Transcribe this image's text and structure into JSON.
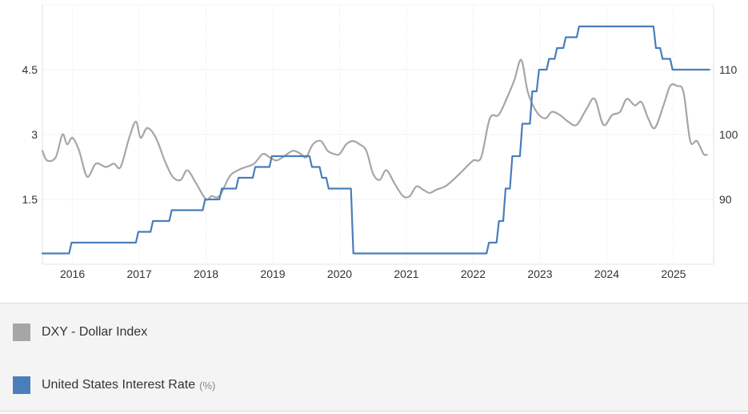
{
  "chart_data": {
    "type": "line",
    "x_ticks": [
      "2016",
      "2017",
      "2018",
      "2019",
      "2020",
      "2021",
      "2022",
      "2023",
      "2024",
      "2025"
    ],
    "xlim": [
      2015.55,
      2025.6
    ],
    "grid": true,
    "left_axis": {
      "ticks": [
        "1.5",
        "3",
        "4.5"
      ],
      "tick_values": [
        1.5,
        3,
        4.5
      ],
      "ylim": [
        0,
        6
      ]
    },
    "right_axis": {
      "ticks": [
        "90",
        "100",
        "110"
      ],
      "tick_values": [
        90,
        100,
        110
      ],
      "ylim": [
        80,
        120
      ]
    },
    "series": [
      {
        "name": "DXY - Dollar Index",
        "axis": "right",
        "color": "#a6a6a6",
        "style": "smooth",
        "points": [
          [
            2015.55,
            97.5
          ],
          [
            2015.62,
            96.0
          ],
          [
            2015.75,
            96.5
          ],
          [
            2015.85,
            100.0
          ],
          [
            2015.92,
            98.5
          ],
          [
            2016.0,
            99.5
          ],
          [
            2016.1,
            97.5
          ],
          [
            2016.22,
            93.5
          ],
          [
            2016.35,
            95.5
          ],
          [
            2016.5,
            95.0
          ],
          [
            2016.62,
            95.5
          ],
          [
            2016.72,
            95.0
          ],
          [
            2016.85,
            99.5
          ],
          [
            2016.95,
            102.0
          ],
          [
            2017.02,
            99.5
          ],
          [
            2017.12,
            101.0
          ],
          [
            2017.25,
            99.5
          ],
          [
            2017.38,
            96.0
          ],
          [
            2017.5,
            93.5
          ],
          [
            2017.62,
            93.0
          ],
          [
            2017.72,
            94.5
          ],
          [
            2017.85,
            92.5
          ],
          [
            2018.0,
            90.0
          ],
          [
            2018.08,
            90.5
          ],
          [
            2018.2,
            90.5
          ],
          [
            2018.35,
            93.5
          ],
          [
            2018.48,
            94.5
          ],
          [
            2018.6,
            95.0
          ],
          [
            2018.72,
            95.5
          ],
          [
            2018.85,
            97.0
          ],
          [
            2018.95,
            96.5
          ],
          [
            2019.05,
            96.0
          ],
          [
            2019.15,
            96.5
          ],
          [
            2019.3,
            97.5
          ],
          [
            2019.42,
            97.0
          ],
          [
            2019.5,
            96.5
          ],
          [
            2019.6,
            98.5
          ],
          [
            2019.72,
            99.0
          ],
          [
            2019.82,
            97.5
          ],
          [
            2019.92,
            97.0
          ],
          [
            2020.0,
            97.0
          ],
          [
            2020.1,
            98.5
          ],
          [
            2020.2,
            99.0
          ],
          [
            2020.3,
            98.5
          ],
          [
            2020.4,
            97.5
          ],
          [
            2020.5,
            94.0
          ],
          [
            2020.6,
            93.0
          ],
          [
            2020.7,
            94.5
          ],
          [
            2020.82,
            92.5
          ],
          [
            2020.95,
            90.5
          ],
          [
            2021.05,
            90.5
          ],
          [
            2021.15,
            92.0
          ],
          [
            2021.25,
            91.5
          ],
          [
            2021.35,
            91.0
          ],
          [
            2021.45,
            91.5
          ],
          [
            2021.58,
            92.0
          ],
          [
            2021.7,
            93.0
          ],
          [
            2021.85,
            94.5
          ],
          [
            2022.0,
            96.0
          ],
          [
            2022.12,
            96.5
          ],
          [
            2022.25,
            102.5
          ],
          [
            2022.38,
            103.0
          ],
          [
            2022.5,
            105.5
          ],
          [
            2022.62,
            108.5
          ],
          [
            2022.72,
            111.5
          ],
          [
            2022.82,
            106.5
          ],
          [
            2022.95,
            103.5
          ],
          [
            2023.08,
            102.5
          ],
          [
            2023.18,
            103.5
          ],
          [
            2023.3,
            103.0
          ],
          [
            2023.42,
            102.0
          ],
          [
            2023.55,
            101.5
          ],
          [
            2023.7,
            104.0
          ],
          [
            2023.82,
            105.5
          ],
          [
            2023.95,
            101.5
          ],
          [
            2024.08,
            103.0
          ],
          [
            2024.2,
            103.5
          ],
          [
            2024.3,
            105.5
          ],
          [
            2024.42,
            104.5
          ],
          [
            2024.52,
            105.0
          ],
          [
            2024.62,
            102.5
          ],
          [
            2024.72,
            101.0
          ],
          [
            2024.85,
            104.5
          ],
          [
            2024.95,
            107.5
          ],
          [
            2025.05,
            107.5
          ],
          [
            2025.15,
            106.5
          ],
          [
            2025.25,
            99.0
          ],
          [
            2025.35,
            99.0
          ],
          [
            2025.45,
            97.0
          ],
          [
            2025.5,
            96.9
          ]
        ]
      },
      {
        "name": "United States Interest Rate",
        "unit": "(%)",
        "axis": "left",
        "color": "#4a7ebb",
        "style": "step",
        "points": [
          [
            2015.55,
            0.25
          ],
          [
            2015.95,
            0.5
          ],
          [
            2016.95,
            0.75
          ],
          [
            2017.17,
            1.0
          ],
          [
            2017.45,
            1.25
          ],
          [
            2017.95,
            1.5
          ],
          [
            2018.2,
            1.75
          ],
          [
            2018.45,
            2.0
          ],
          [
            2018.7,
            2.25
          ],
          [
            2018.95,
            2.5
          ],
          [
            2019.55,
            2.25
          ],
          [
            2019.7,
            2.0
          ],
          [
            2019.8,
            1.75
          ],
          [
            2020.17,
            0.25
          ],
          [
            2022.2,
            0.5
          ],
          [
            2022.35,
            1.0
          ],
          [
            2022.45,
            1.75
          ],
          [
            2022.55,
            2.5
          ],
          [
            2022.7,
            3.25
          ],
          [
            2022.85,
            4.0
          ],
          [
            2022.95,
            4.5
          ],
          [
            2023.1,
            4.75
          ],
          [
            2023.22,
            5.0
          ],
          [
            2023.35,
            5.25
          ],
          [
            2023.55,
            5.5
          ],
          [
            2024.7,
            5.0
          ],
          [
            2024.8,
            4.75
          ],
          [
            2024.95,
            4.5
          ],
          [
            2025.5,
            4.5
          ]
        ]
      }
    ]
  },
  "legend": [
    {
      "label": "DXY - Dollar Index",
      "unit": "",
      "color": "#a6a6a6"
    },
    {
      "label": "United States Interest Rate",
      "unit": "(%)",
      "color": "#4a7ebb"
    }
  ]
}
